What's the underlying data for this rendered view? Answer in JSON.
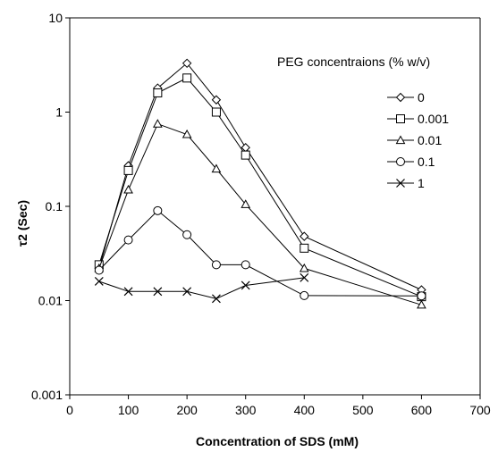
{
  "chart_data": {
    "type": "line",
    "xlabel": "Concentration of SDS (mM)",
    "ylabel": "τ2 (Sec)",
    "xlim": [
      0,
      700
    ],
    "ylim": [
      0.001,
      10
    ],
    "yscale": "log",
    "xticks": [
      0,
      100,
      200,
      300,
      400,
      500,
      600,
      700
    ],
    "xtick_labels": [
      "0",
      "100",
      "200",
      "300",
      "400",
      "500",
      "600",
      "700"
    ],
    "yticks": [
      0.001,
      0.01,
      0.1,
      1,
      10
    ],
    "ytick_labels": [
      "0.001",
      "0.01",
      "0.1",
      "1",
      "10"
    ],
    "legend_title": "PEG concentraions (% w/v)",
    "legend_position": "top-right",
    "grid": false,
    "series": [
      {
        "name": "0",
        "marker": "diamond",
        "x": [
          50,
          100,
          150,
          200,
          250,
          300,
          400,
          600
        ],
        "values": [
          0.022,
          0.27,
          1.8,
          3.3,
          1.35,
          0.42,
          0.048,
          0.013
        ]
      },
      {
        "name": "0.001",
        "marker": "square",
        "x": [
          50,
          100,
          150,
          200,
          250,
          300,
          400,
          600
        ],
        "values": [
          0.024,
          0.24,
          1.6,
          2.3,
          1.0,
          0.35,
          0.036,
          0.011
        ]
      },
      {
        "name": "0.01",
        "marker": "triangle",
        "x": [
          50,
          100,
          150,
          200,
          250,
          300,
          400,
          600
        ],
        "values": [
          0.022,
          0.15,
          0.75,
          0.58,
          0.25,
          0.105,
          0.022,
          0.009
        ]
      },
      {
        "name": "0.1",
        "marker": "circle",
        "x": [
          50,
          100,
          150,
          200,
          250,
          300,
          400,
          600
        ],
        "values": [
          0.021,
          0.044,
          0.09,
          0.05,
          0.024,
          0.024,
          0.0113,
          0.0112
        ]
      },
      {
        "name": "1",
        "marker": "cross",
        "x": [
          50,
          100,
          150,
          200,
          250,
          300,
          400
        ],
        "values": [
          0.016,
          0.0125,
          0.0125,
          0.0125,
          0.0105,
          0.0145,
          0.0175
        ]
      }
    ]
  }
}
